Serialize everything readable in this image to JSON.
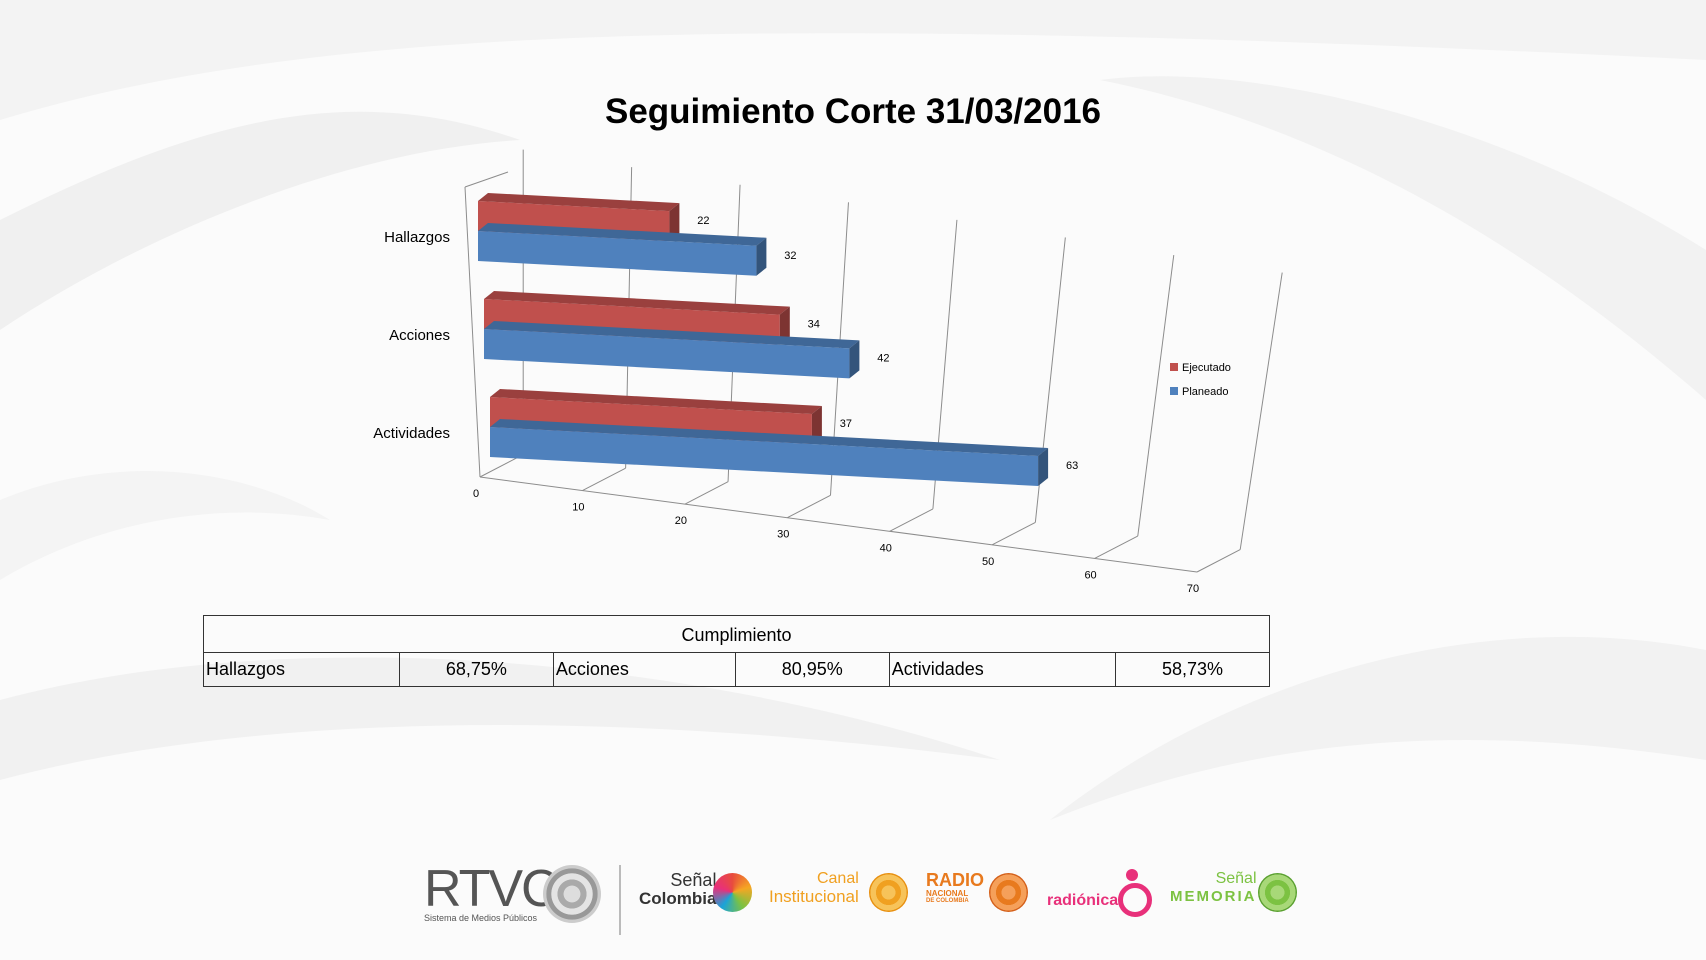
{
  "chart_data": {
    "type": "bar",
    "orientation": "horizontal",
    "style": "3d",
    "title": "Seguimiento Corte 31/03/2016",
    "categories": [
      "Hallazgos",
      "Acciones",
      "Actividades"
    ],
    "series": [
      {
        "name": "Ejecutado",
        "color": "#c0504d",
        "values": [
          22,
          34,
          37
        ]
      },
      {
        "name": "Planeado",
        "color": "#4f81bd",
        "values": [
          32,
          42,
          63
        ]
      }
    ],
    "xlim": [
      0,
      70
    ],
    "xticks": [
      "0",
      "10",
      "20",
      "30",
      "40",
      "50",
      "60",
      "70"
    ],
    "grid": true,
    "legend_position": "right"
  },
  "summary_table": {
    "header": "Cumplimiento",
    "rows": [
      {
        "label": "Hallazgos",
        "value": "68,75%"
      },
      {
        "label": "Acciones",
        "value": "80,95%"
      },
      {
        "label": "Actividades",
        "value": "58,73%"
      }
    ]
  },
  "footer": {
    "rtvc": "RTVC",
    "rtvc_sub": "Sistema de Medios Públicos",
    "senal_colombia_top": "Señal",
    "senal_colombia_bottom": "Colombia",
    "canal_top": "Canal",
    "canal_bottom": "Institucional",
    "radio_top": "RADIO",
    "radio_mid": "NACIONAL",
    "radio_bottom": "DE COLOMBIA",
    "radionica": "radiónica",
    "memoria_top": "Señal",
    "memoria_bottom": "MEMORIA"
  },
  "colors": {
    "ejecutado": "#c0504d",
    "planeado": "#4f81bd",
    "rtvc": "#555555",
    "senal_colombia": "#333333",
    "canal": "#f0a020",
    "radio": "#e87a1e",
    "radionica": "#e8307a",
    "memoria": "#7cc242"
  }
}
